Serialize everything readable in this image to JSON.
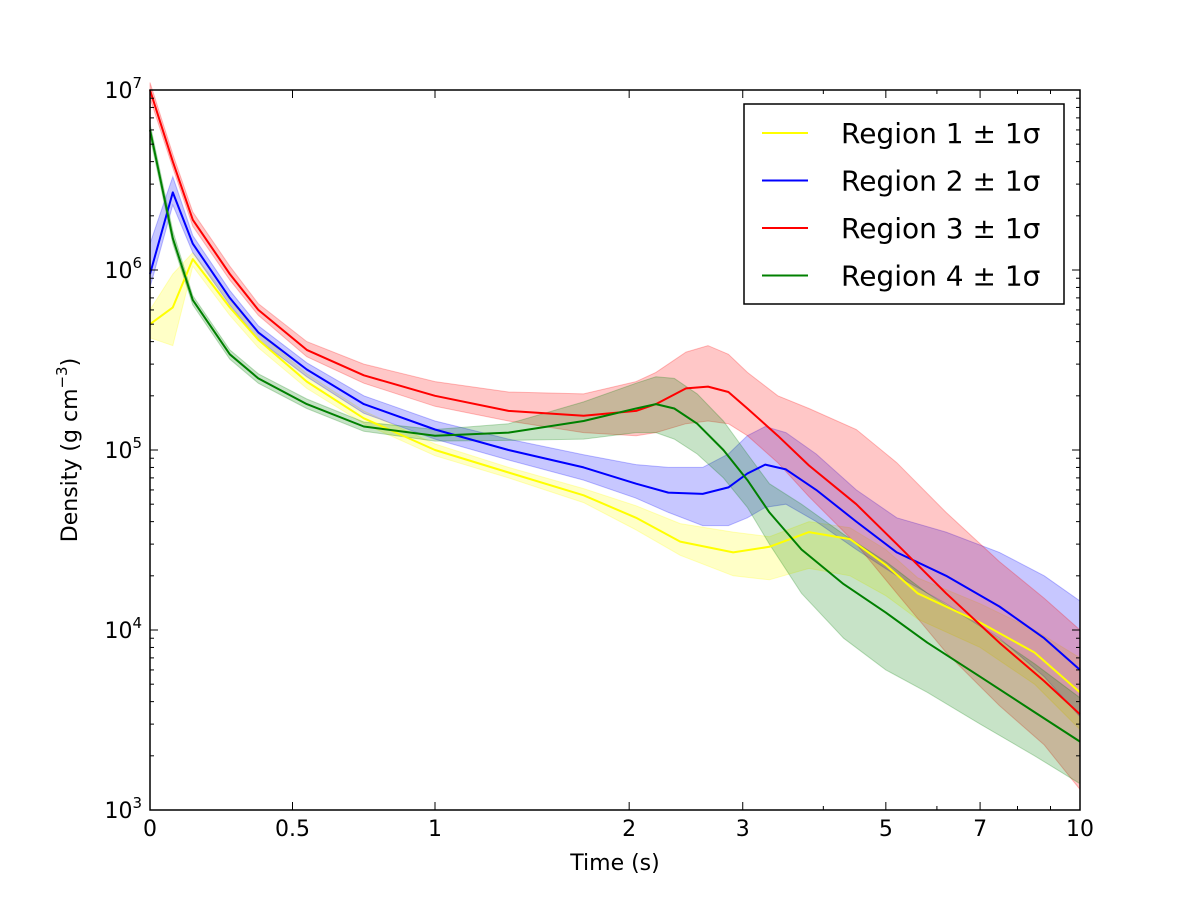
{
  "chart_data": {
    "type": "line",
    "xlabel": "Time (s)",
    "ylabel": "Density (g cm",
    "ylabel_exp": "−3",
    "ylabel_end": ")",
    "xscale": "symlog (linear 0–1, log 1–10)",
    "yscale": "log",
    "xlim": [
      0,
      10
    ],
    "ylim": [
      1000,
      10000000
    ],
    "x_ticks": [
      {
        "value": 0,
        "label": "0"
      },
      {
        "value": 0.5,
        "label": "0.5"
      },
      {
        "value": 1,
        "label": "1"
      },
      {
        "value": 2,
        "label": "2"
      },
      {
        "value": 3,
        "label": "3"
      },
      {
        "value": 5,
        "label": "5"
      },
      {
        "value": 7,
        "label": "7"
      },
      {
        "value": 10,
        "label": "10"
      }
    ],
    "y_ticks": [
      {
        "value": 1000,
        "base": "10",
        "exp": "3"
      },
      {
        "value": 10000,
        "base": "10",
        "exp": "4"
      },
      {
        "value": 100000,
        "base": "10",
        "exp": "5"
      },
      {
        "value": 1000000,
        "base": "10",
        "exp": "6"
      },
      {
        "value": 10000000,
        "base": "10",
        "exp": "7"
      }
    ],
    "legend": {
      "location": "upper right"
    },
    "series": [
      {
        "name": "Region 1 ± 1σ",
        "color": "#ffff00",
        "x": [
          0,
          0.08,
          0.15,
          0.28,
          0.38,
          0.55,
          0.75,
          1.0,
          1.3,
          1.7,
          2.05,
          2.4,
          2.9,
          3.3,
          3.8,
          4.4,
          5.0,
          5.6,
          7.0,
          8.5,
          10
        ],
        "y": [
          500000,
          620000,
          1150000,
          620000,
          410000,
          240000,
          150000,
          100000,
          75000,
          56000,
          42000,
          31000,
          27000,
          29000,
          35000,
          32000,
          23000,
          16000,
          11000,
          7500,
          4500
        ],
        "lower": [
          420000,
          380000,
          1050000,
          560000,
          370000,
          220000,
          140000,
          93000,
          70000,
          51000,
          36000,
          26000,
          20000,
          19000,
          22000,
          20000,
          15500,
          11500,
          8000,
          5000,
          2800
        ],
        "upper": [
          600000,
          950000,
          1250000,
          680000,
          450000,
          265000,
          165000,
          108000,
          80000,
          61000,
          49000,
          39000,
          35000,
          33000,
          40000,
          37000,
          28000,
          19500,
          14000,
          10000,
          7000
        ]
      },
      {
        "name": "Region 2 ± 1σ",
        "color": "#0000ff",
        "x": [
          0,
          0.08,
          0.15,
          0.28,
          0.38,
          0.55,
          0.75,
          1.0,
          1.3,
          1.7,
          2.05,
          2.3,
          2.6,
          2.85,
          3.05,
          3.25,
          3.5,
          3.9,
          4.5,
          5.2,
          6.2,
          7.5,
          8.8,
          10
        ],
        "y": [
          950000,
          2700000,
          1400000,
          700000,
          450000,
          280000,
          180000,
          130000,
          100000,
          80000,
          65000,
          58000,
          57000,
          62000,
          74000,
          83000,
          78000,
          60000,
          40000,
          27000,
          20000,
          13500,
          9000,
          6000
        ],
        "lower": [
          800000,
          2300000,
          1250000,
          640000,
          410000,
          255000,
          160000,
          115000,
          88000,
          68000,
          54000,
          45000,
          38000,
          38000,
          42000,
          48000,
          50000,
          40000,
          28000,
          20000,
          14000,
          9000,
          5500,
          3300
        ],
        "upper": [
          1400000,
          3300000,
          1550000,
          770000,
          490000,
          305000,
          200000,
          145000,
          115000,
          94000,
          83000,
          80000,
          80000,
          95000,
          120000,
          135000,
          125000,
          95000,
          60000,
          42000,
          35000,
          27000,
          20000,
          14500
        ]
      },
      {
        "name": "Region 3 ± 1σ",
        "color": "#ff0000",
        "x": [
          0,
          0.08,
          0.15,
          0.28,
          0.38,
          0.55,
          0.75,
          1.0,
          1.3,
          1.7,
          2.05,
          2.2,
          2.45,
          2.65,
          2.85,
          3.05,
          3.4,
          3.8,
          4.5,
          5.2,
          6.2,
          7.5,
          8.8,
          10
        ],
        "y": [
          10000000,
          4000000,
          1900000,
          950000,
          600000,
          360000,
          260000,
          200000,
          165000,
          155000,
          165000,
          180000,
          220000,
          225000,
          210000,
          170000,
          120000,
          82000,
          50000,
          30000,
          16000,
          8500,
          5200,
          3400
        ],
        "lower": [
          9000000,
          3700000,
          1750000,
          880000,
          560000,
          330000,
          235000,
          175000,
          145000,
          125000,
          120000,
          125000,
          140000,
          145000,
          140000,
          120000,
          85000,
          55000,
          30000,
          16000,
          7500,
          3800,
          2300,
          1300
        ],
        "upper": [
          11000000,
          4400000,
          2100000,
          1050000,
          650000,
          400000,
          300000,
          240000,
          210000,
          205000,
          240000,
          270000,
          350000,
          380000,
          340000,
          270000,
          200000,
          170000,
          130000,
          85000,
          45000,
          24000,
          15000,
          10000
        ]
      },
      {
        "name": "Region 4 ± 1σ",
        "color": "#008000",
        "x": [
          0,
          0.08,
          0.15,
          0.28,
          0.38,
          0.55,
          0.75,
          1.0,
          1.3,
          1.7,
          2.05,
          2.2,
          2.35,
          2.55,
          2.8,
          3.05,
          3.3,
          3.7,
          4.3,
          5.0,
          5.8,
          7.0,
          8.5,
          10
        ],
        "y": [
          6000000,
          1500000,
          680000,
          340000,
          250000,
          180000,
          135000,
          120000,
          125000,
          145000,
          170000,
          180000,
          170000,
          140000,
          100000,
          68000,
          45000,
          28000,
          18000,
          12500,
          8500,
          5500,
          3500,
          2400
        ],
        "lower": [
          5500000,
          1400000,
          640000,
          320000,
          235000,
          170000,
          127000,
          112000,
          113000,
          115000,
          125000,
          125000,
          115000,
          95000,
          70000,
          48000,
          30000,
          16000,
          9000,
          6000,
          4500,
          3000,
          2000,
          1400
        ],
        "upper": [
          6500000,
          1650000,
          720000,
          360000,
          265000,
          192000,
          143000,
          130000,
          140000,
          185000,
          235000,
          255000,
          250000,
          205000,
          145000,
          95000,
          65000,
          50000,
          34000,
          24000,
          16000,
          10500,
          6500,
          4200
        ]
      }
    ]
  }
}
